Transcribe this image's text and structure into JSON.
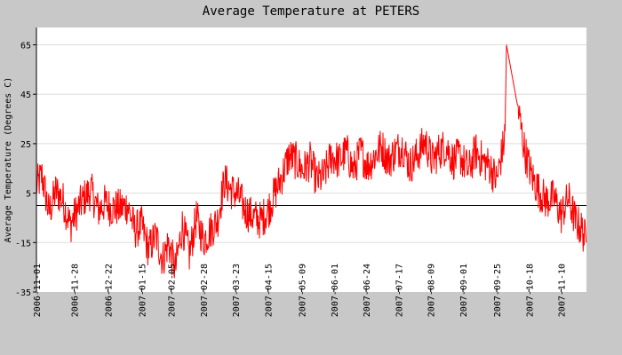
{
  "chart_data": {
    "type": "line",
    "title": "Average Temperature at PETERS",
    "xlabel": "",
    "ylabel": "Average Temperature (Degrees C)",
    "ylim": [
      -35,
      72
    ],
    "xlim": [
      "2006-11-01",
      "2007-11-28"
    ],
    "y_ticks": [
      -35,
      -15,
      5,
      25,
      45,
      65
    ],
    "x_ticks": [
      "2006-11-01",
      "2006-11-28",
      "2006-12-22",
      "2007-01-15",
      "2007-02-05",
      "2007-02-28",
      "2007-03-23",
      "2007-04-15",
      "2007-05-09",
      "2007-06-01",
      "2007-06-24",
      "2007-07-17",
      "2007-08-09",
      "2007-09-01",
      "2007-09-25",
      "2007-10-18",
      "2007-11-10"
    ],
    "grid": true,
    "zero_line": true,
    "colors": {
      "series": "#ff0000",
      "plot_bg": "#ffffff",
      "frame_bg": "#c8c8c8",
      "grid": "#dddddd",
      "axis": "#000000"
    },
    "series": [
      {
        "x": [
          "2006-11-01",
          "2006-11-05",
          "2006-11-10",
          "2006-11-15",
          "2006-11-20",
          "2006-11-25",
          "2006-11-30",
          "2006-12-05",
          "2006-12-10",
          "2006-12-15",
          "2006-12-20",
          "2006-12-24",
          "2006-12-31",
          "2007-01-05",
          "2007-01-10",
          "2007-01-15",
          "2007-01-20",
          "2007-01-25",
          "2007-01-30",
          "2007-02-03",
          "2007-02-08",
          "2007-02-13",
          "2007-02-18",
          "2007-02-23",
          "2007-02-28",
          "2007-03-05",
          "2007-03-10",
          "2007-03-15",
          "2007-03-20",
          "2007-03-25",
          "2007-03-30",
          "2007-04-05",
          "2007-04-10",
          "2007-04-15",
          "2007-04-20",
          "2007-04-25",
          "2007-04-30",
          "2007-05-05",
          "2007-05-10",
          "2007-05-15",
          "2007-05-20",
          "2007-05-25",
          "2007-05-30",
          "2007-06-05",
          "2007-06-10",
          "2007-06-15",
          "2007-06-20",
          "2007-06-25",
          "2007-06-30",
          "2007-07-05",
          "2007-07-10",
          "2007-07-15",
          "2007-07-20",
          "2007-07-25",
          "2007-07-30",
          "2007-08-05",
          "2007-08-10",
          "2007-08-15",
          "2007-08-20",
          "2007-08-25",
          "2007-08-30",
          "2007-09-05",
          "2007-09-10",
          "2007-09-15",
          "2007-09-20",
          "2007-09-25",
          "2007-09-30",
          "2007-10-01",
          "2007-10-02",
          "2007-10-10",
          "2007-10-15",
          "2007-10-20",
          "2007-10-25",
          "2007-10-30",
          "2007-11-05",
          "2007-11-10",
          "2007-11-15",
          "2007-11-20",
          "2007-11-25",
          "2007-11-28"
        ],
        "y": [
          8,
          12,
          -3,
          6,
          2,
          -8,
          -2,
          3,
          6,
          -2,
          1,
          -1,
          -1,
          0,
          -10,
          -8,
          -18,
          -12,
          -22,
          -15,
          -26,
          -8,
          -20,
          -5,
          -14,
          -10,
          -6,
          10,
          6,
          4,
          -2,
          -5,
          -6,
          -2,
          5,
          12,
          20,
          18,
          14,
          18,
          10,
          12,
          20,
          18,
          22,
          14,
          22,
          16,
          20,
          24,
          18,
          22,
          24,
          16,
          20,
          26,
          18,
          22,
          24,
          18,
          20,
          14,
          22,
          18,
          16,
          10,
          25,
          30,
          65,
          40,
          22,
          12,
          6,
          2,
          3,
          -4,
          3,
          -6,
          -10,
          -15
        ],
        "spread": 16,
        "samples_per_day": 3
      }
    ]
  }
}
